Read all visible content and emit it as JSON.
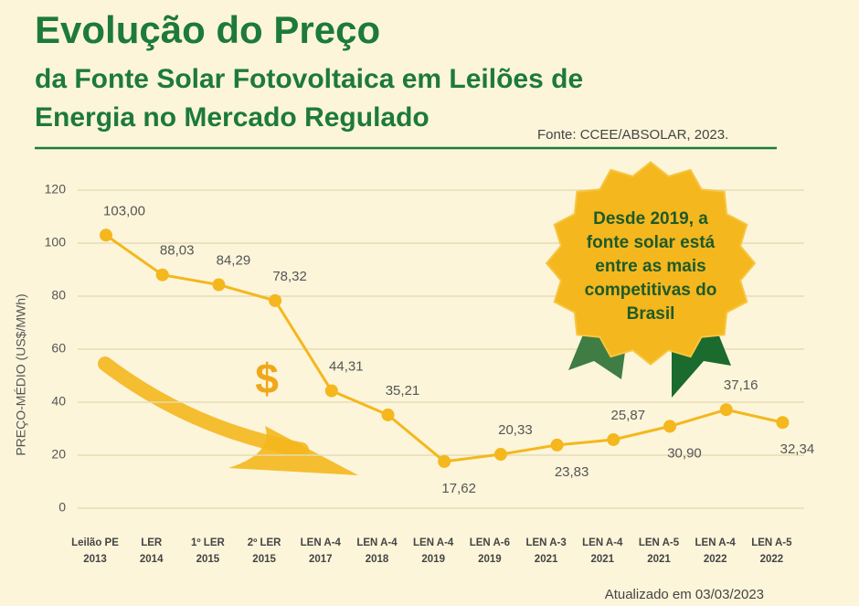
{
  "chart_data": {
    "type": "line",
    "title": "Evolução do Preço",
    "subtitle": [
      "da Fonte Solar Fotovoltaica em Leilões de",
      "Energia no Mercado Regulado"
    ],
    "source": "Fonte: CCEE/ABSOLAR, 2023.",
    "y_label": "PREÇO-MÉDIO (US$/MWh)",
    "note": "Atualizado em 03/03/2023",
    "badge": [
      "Desde 2019, a",
      "fonte solar está",
      "entre as mais",
      "competitivas do",
      "Brasil"
    ],
    "symbol": "$",
    "categories": [
      [
        "Leilão PE",
        "2013"
      ],
      [
        "LER",
        "2014"
      ],
      [
        "1º LER",
        "2015"
      ],
      [
        "2º LER",
        "2015"
      ],
      [
        "LEN A-4",
        "2017"
      ],
      [
        "LEN A-4",
        "2018"
      ],
      [
        "LEN A-4",
        "2019"
      ],
      [
        "LEN A-6",
        "2019"
      ],
      [
        "LEN A-3",
        "2021"
      ],
      [
        "LEN A-4",
        "2021"
      ],
      [
        "LEN A-5",
        "2021"
      ],
      [
        "LEN A-4",
        "2022"
      ],
      [
        "LEN A-5",
        "2022"
      ]
    ],
    "values": [
      103.0,
      88.03,
      84.29,
      78.32,
      44.31,
      35.21,
      17.62,
      20.33,
      23.83,
      25.87,
      30.9,
      37.16,
      32.34
    ],
    "value_labels": [
      "103,00",
      "88,03",
      "84,29",
      "78,32",
      "44,31",
      "35,21",
      "17,62",
      "20,33",
      "23,83",
      "25,87",
      "30,90",
      "37,16",
      "32,34"
    ],
    "color": "#f4b71d",
    "ylim": [
      0,
      120
    ],
    "yticks": [
      0,
      20,
      40,
      60,
      80,
      100,
      120
    ],
    "grid": true
  }
}
